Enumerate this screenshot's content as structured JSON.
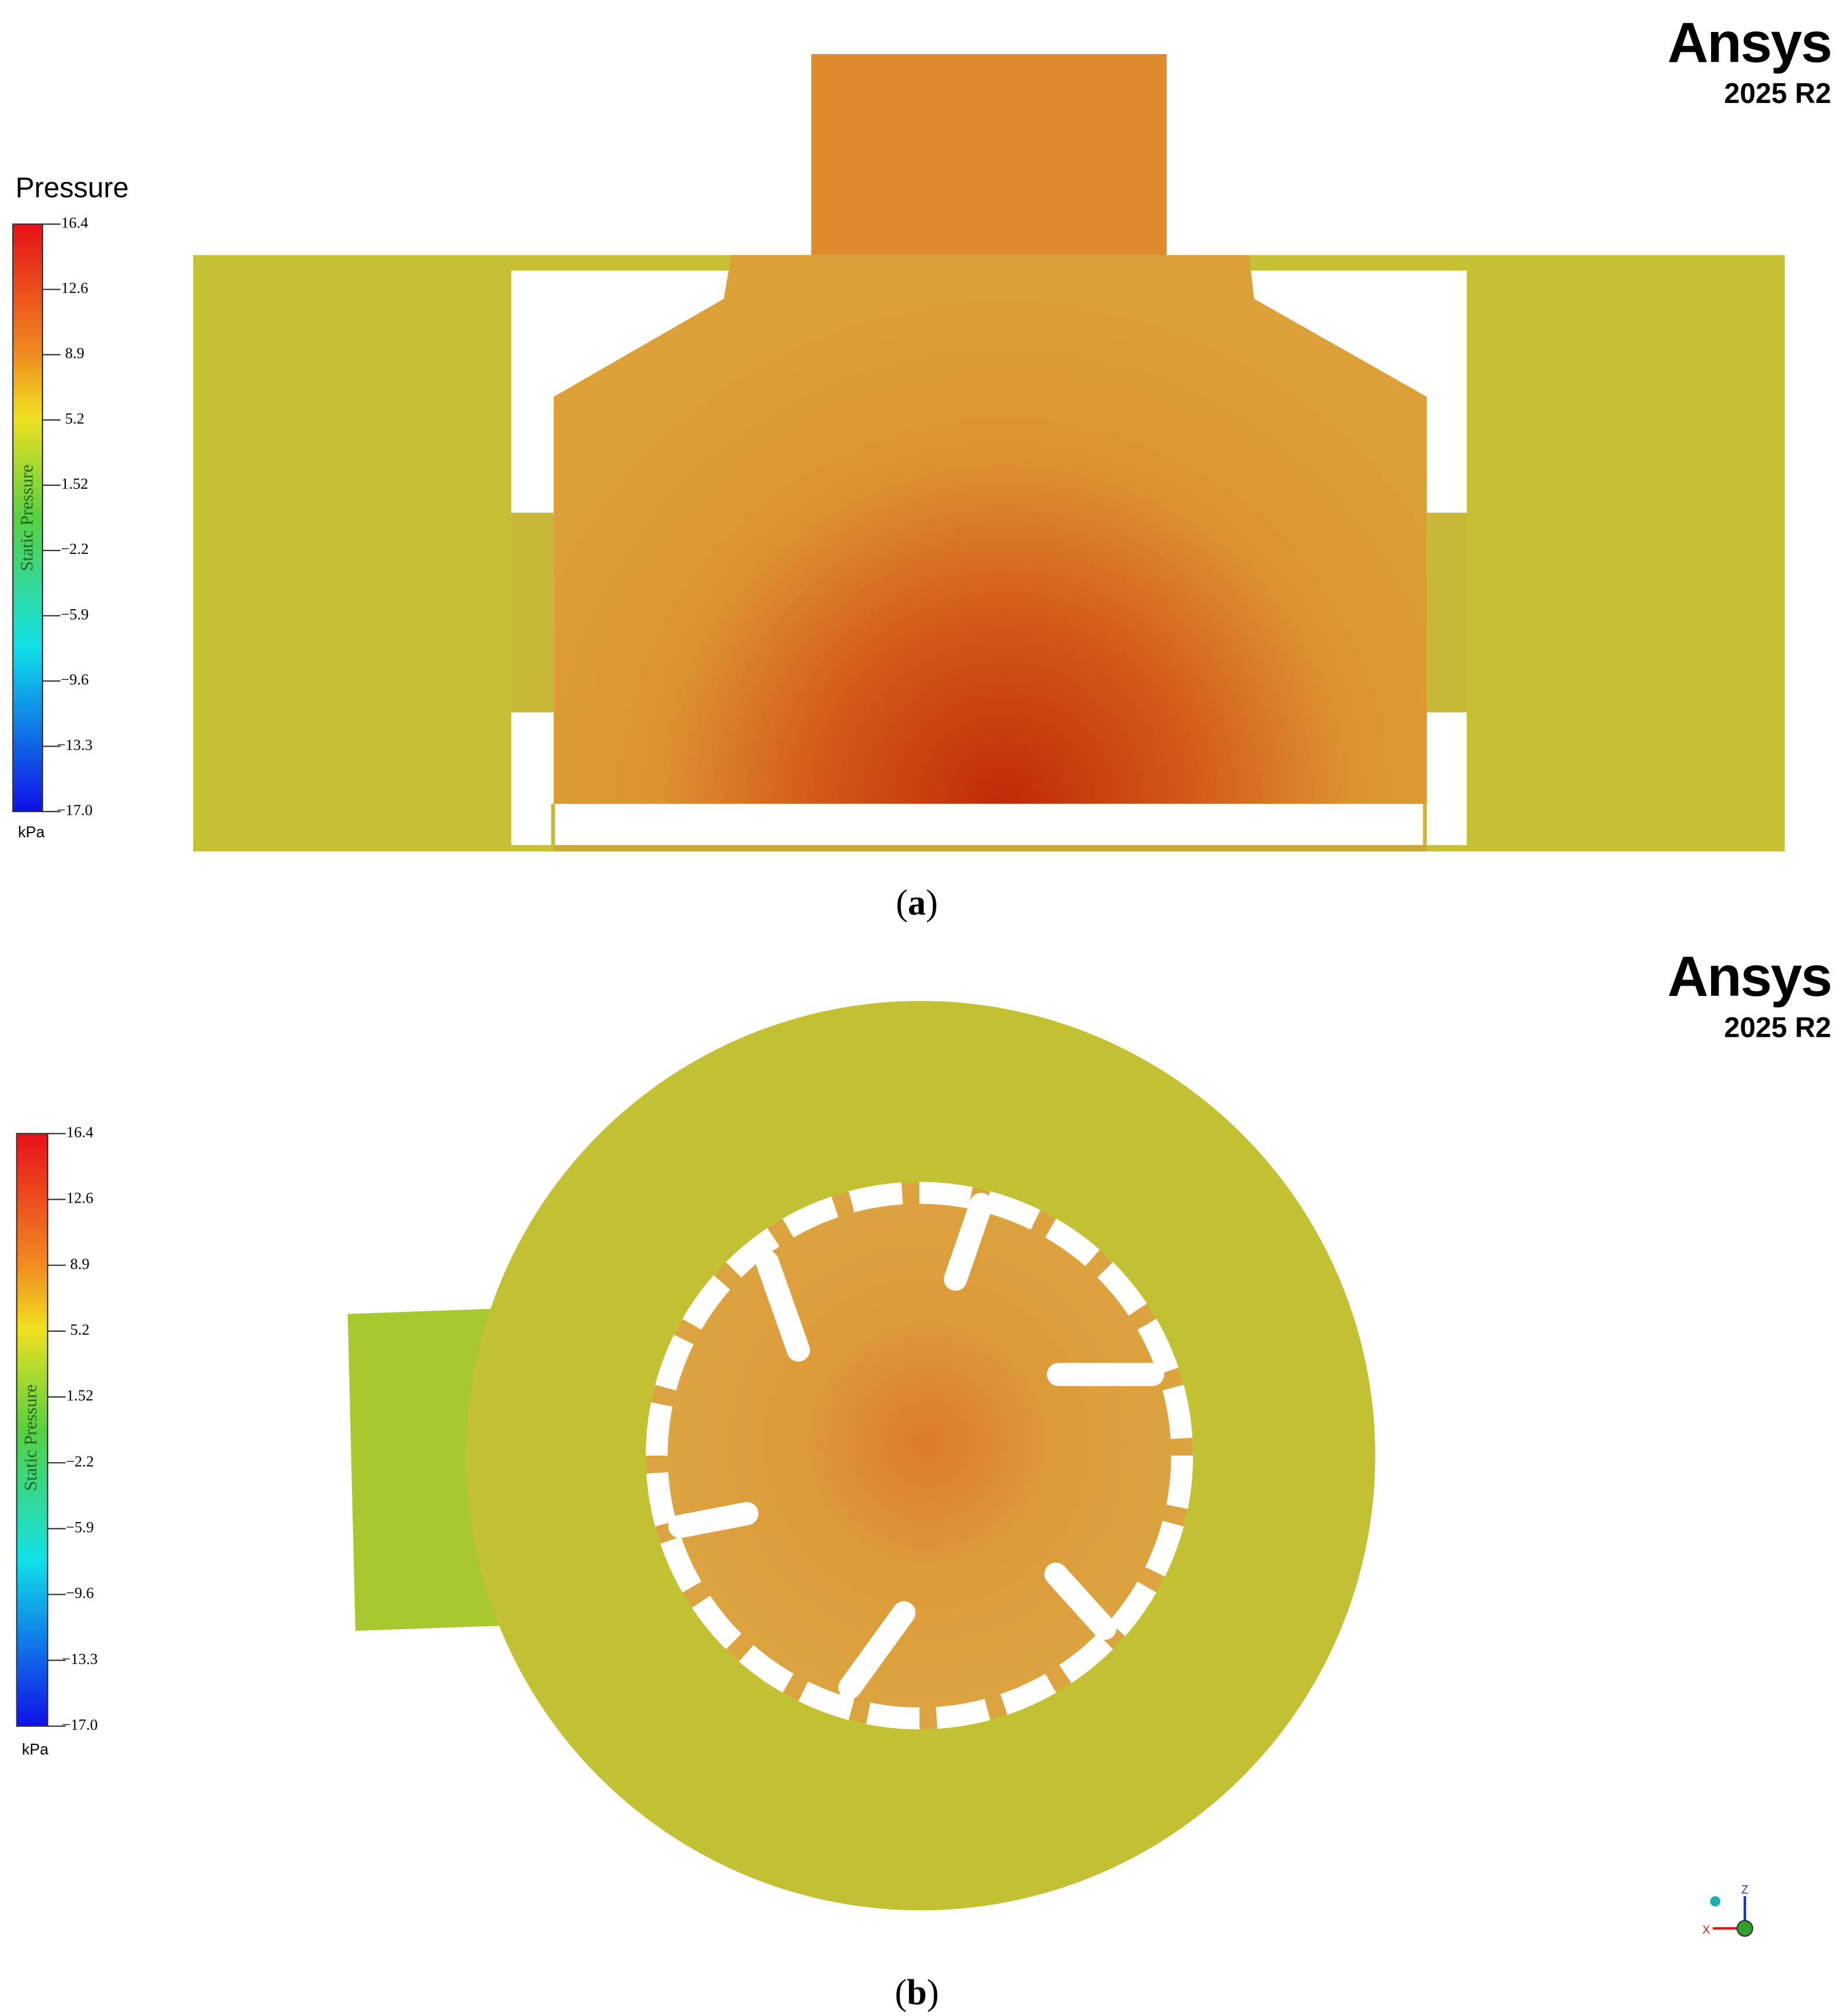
{
  "panels": [
    {
      "caption_label": "a",
      "logo": "Ansys",
      "version": "2025 R2",
      "legend_title": "Pressure",
      "colorbar_label": "Static Pressure",
      "unit": "kPa",
      "colorbar_ticks": [
        "16.4",
        "12.6",
        "8.9",
        "5.2",
        "1.52",
        "−2.2",
        "−5.9",
        "−9.6",
        "−13.3",
        "−17.0"
      ]
    },
    {
      "caption_label": "b",
      "logo": "Ansys",
      "version": "2025 R2",
      "colorbar_label": "Static Pressure",
      "unit": "kPa",
      "colorbar_ticks": [
        "16.4",
        "12.6",
        "8.9",
        "5.2",
        "1.52",
        "−2.2",
        "−5.9",
        "−9.6",
        "−13.3",
        "−17.0"
      ],
      "triad": {
        "z": "Z",
        "x": "X"
      }
    }
  ]
}
